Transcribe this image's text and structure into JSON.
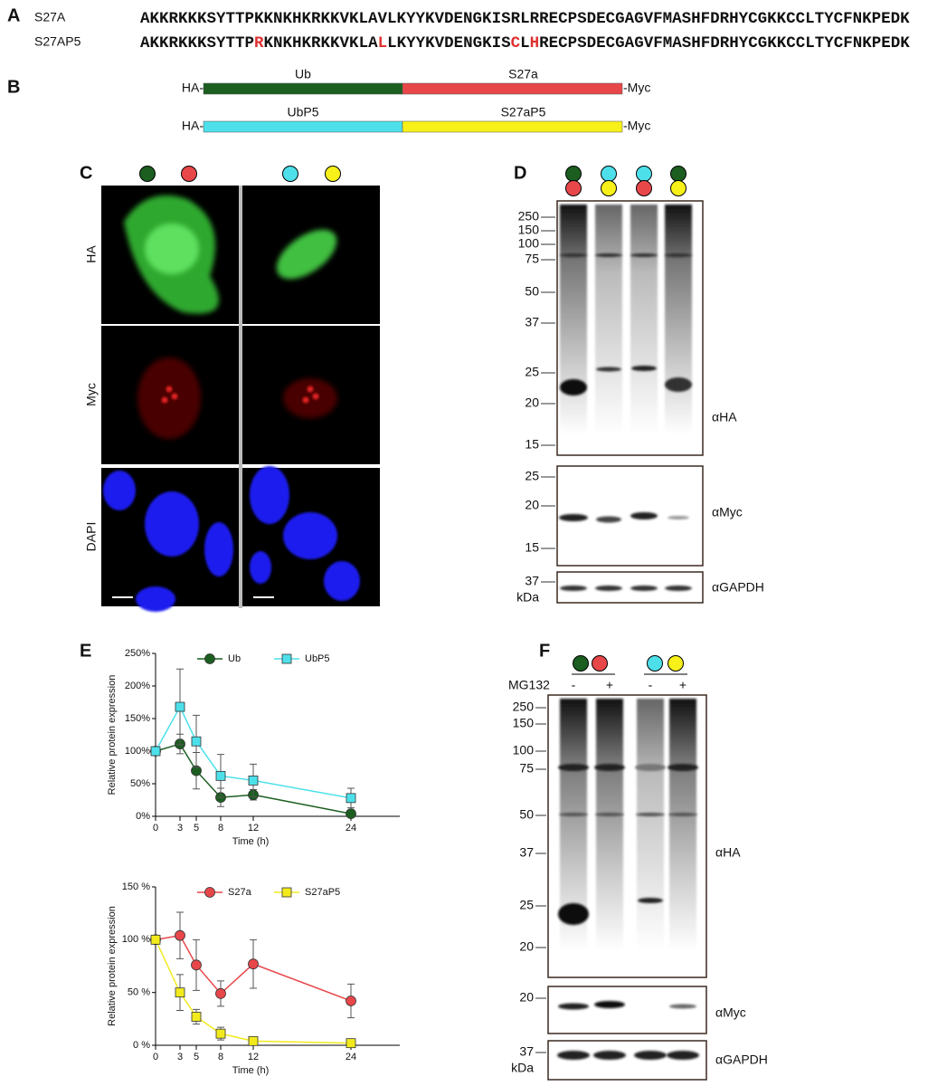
{
  "panel_a": {
    "label": "A",
    "rows": [
      {
        "name": "S27A",
        "segments": [
          {
            "text": "AKKRKKKSYTTPKKNKHKRKKVKLAVLKYYKVDENGKISRLRRECPSDECGAGVFMASHFDRHYCGKKCCLTYCFNKPEDK",
            "mutated": false
          }
        ]
      },
      {
        "name": "S27AP5",
        "segments": [
          {
            "text": "AKKRKKKSYTTP",
            "mutated": false
          },
          {
            "text": "R",
            "mutated": true
          },
          {
            "text": "KNKHKRKKVKLA",
            "mutated": false
          },
          {
            "text": "L",
            "mutated": true
          },
          {
            "text": "LKYYKVDENGKIS",
            "mutated": false
          },
          {
            "text": "C",
            "mutated": true
          },
          {
            "text": "L",
            "mutated": false
          },
          {
            "text": "H",
            "mutated": true
          },
          {
            "text": "RECPSDECGAGVFMASHFDRHYCGKKCCLTYCFNKPEDK",
            "mutated": false
          }
        ]
      }
    ]
  },
  "panel_b": {
    "label": "B",
    "constructs": [
      {
        "prefix": "HA-",
        "domains": [
          {
            "name": "Ub",
            "color": "#1b5e20"
          },
          {
            "name": "S27a",
            "color": "#e8474a"
          }
        ],
        "suffix": "-Myc"
      },
      {
        "prefix": "HA-",
        "domains": [
          {
            "name": "UbP5",
            "color": "#4de0ea"
          },
          {
            "name": "S27aP5",
            "color": "#f7f019"
          }
        ],
        "suffix": "-Myc"
      }
    ]
  },
  "panel_c": {
    "label": "C",
    "rows": [
      "HA",
      "Myc",
      "DAPI"
    ]
  },
  "panel_d": {
    "label": "D",
    "blots": [
      {
        "markers": [
          250,
          150,
          100,
          75,
          50,
          37,
          25,
          20,
          15
        ],
        "antibody": "αHA"
      },
      {
        "markers": [
          25,
          20,
          15
        ],
        "antibody": "αMyc"
      },
      {
        "markers": [
          37
        ],
        "unit": "kDa",
        "antibody": "αGAPDH"
      }
    ]
  },
  "panel_e": {
    "label": "E"
  },
  "chart_data": [
    {
      "type": "line",
      "ylabel": "Relative protein expression",
      "xlabel": "Time (h)",
      "x": [
        0,
        3,
        5,
        8,
        12,
        24
      ],
      "xlim": [
        0,
        30
      ],
      "xticks": [
        0,
        3,
        5,
        8,
        12,
        24
      ],
      "ylim": [
        0,
        250
      ],
      "yticks": [
        {
          "value": 0,
          "label": "0%"
        },
        {
          "value": 50,
          "label": "50%"
        },
        {
          "value": 100,
          "label": "100%"
        },
        {
          "value": 150,
          "label": "150%"
        },
        {
          "value": 200,
          "label": "200%"
        },
        {
          "value": 250,
          "label": "250%"
        }
      ],
      "legend": "top",
      "series": [
        {
          "name": "Ub",
          "color": "#1b5e20",
          "marker": "circle",
          "values": [
            100,
            111,
            70,
            29,
            33,
            4
          ],
          "errors": [
            0,
            15,
            28,
            14,
            8,
            3
          ]
        },
        {
          "name": "UbP5",
          "color": "#4de0ea",
          "marker": "square",
          "values": [
            100,
            168,
            115,
            62,
            55,
            28
          ],
          "errors": [
            0,
            58,
            40,
            33,
            25,
            15
          ]
        }
      ]
    },
    {
      "type": "line",
      "ylabel": "Relative protein expression",
      "xlabel": "Time (h)",
      "x": [
        0,
        3,
        5,
        8,
        12,
        24
      ],
      "xlim": [
        0,
        30
      ],
      "xticks": [
        0,
        3,
        5,
        8,
        12,
        24
      ],
      "ylim": [
        0,
        150
      ],
      "yticks": [
        {
          "value": 0,
          "label": "0 %"
        },
        {
          "value": 50,
          "label": "50 %"
        },
        {
          "value": 100,
          "label": "100 %"
        },
        {
          "value": 150,
          "label": "150 %"
        }
      ],
      "legend": "top",
      "series": [
        {
          "name": "S27a",
          "color": "#e8474a",
          "marker": "circle",
          "values": [
            100,
            104,
            76,
            49,
            77,
            42
          ],
          "errors": [
            0,
            22,
            24,
            12,
            23,
            16
          ]
        },
        {
          "name": "S27aP5",
          "color": "#f2ea1d",
          "marker": "square",
          "values": [
            100,
            50,
            27,
            11,
            4,
            2
          ],
          "errors": [
            0,
            17,
            7,
            6,
            2,
            1
          ]
        }
      ]
    }
  ],
  "panel_f": {
    "label": "F",
    "treatment": "MG132",
    "lanes": [
      "-",
      "+",
      "-",
      "+"
    ],
    "blots": [
      {
        "markers": [
          250,
          150,
          100,
          75,
          50,
          37,
          25,
          20
        ],
        "antibody": "αHA"
      },
      {
        "markers": [
          20
        ],
        "antibody": "αMyc"
      },
      {
        "markers": [
          37
        ],
        "unit": "kDa",
        "antibody": "αGAPDH"
      }
    ]
  }
}
